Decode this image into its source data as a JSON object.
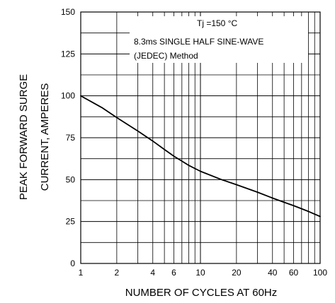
{
  "chart_data": {
    "type": "line",
    "title": "",
    "xlabel": "NUMBER OF CYCLES AT 60Hz",
    "ylabel_lines": [
      "PEAK FORWARD SURGE",
      "CURRENT, AMPERES"
    ],
    "x_scale": "log",
    "xlim": [
      1,
      100
    ],
    "ylim": [
      0,
      150
    ],
    "grid": true,
    "x_ticks": [
      1,
      2,
      4,
      6,
      10,
      20,
      40,
      60,
      100
    ],
    "x_tick_labels": [
      "1",
      "2",
      "4",
      "6",
      "10",
      "20",
      "40",
      "60",
      "100"
    ],
    "y_ticks": [
      0,
      25,
      50,
      75,
      100,
      125,
      150
    ],
    "y_tick_labels": [
      "0",
      "25",
      "50",
      "75",
      "100",
      "125",
      "150"
    ],
    "series": [
      {
        "x": [
          1,
          1.5,
          2,
          3,
          4,
          5,
          6,
          8,
          10,
          15,
          20,
          30,
          40,
          50,
          60,
          80,
          100
        ],
        "y": [
          100,
          93,
          87,
          79,
          73,
          68,
          64,
          58.5,
          55,
          50,
          47,
          42.5,
          39,
          36.5,
          34.5,
          31,
          28
        ]
      }
    ],
    "annotations": [
      "Tj =150 °C",
      "8.3ms SINGLE HALF SINE-WAVE",
      "(JEDEC) Method"
    ]
  }
}
